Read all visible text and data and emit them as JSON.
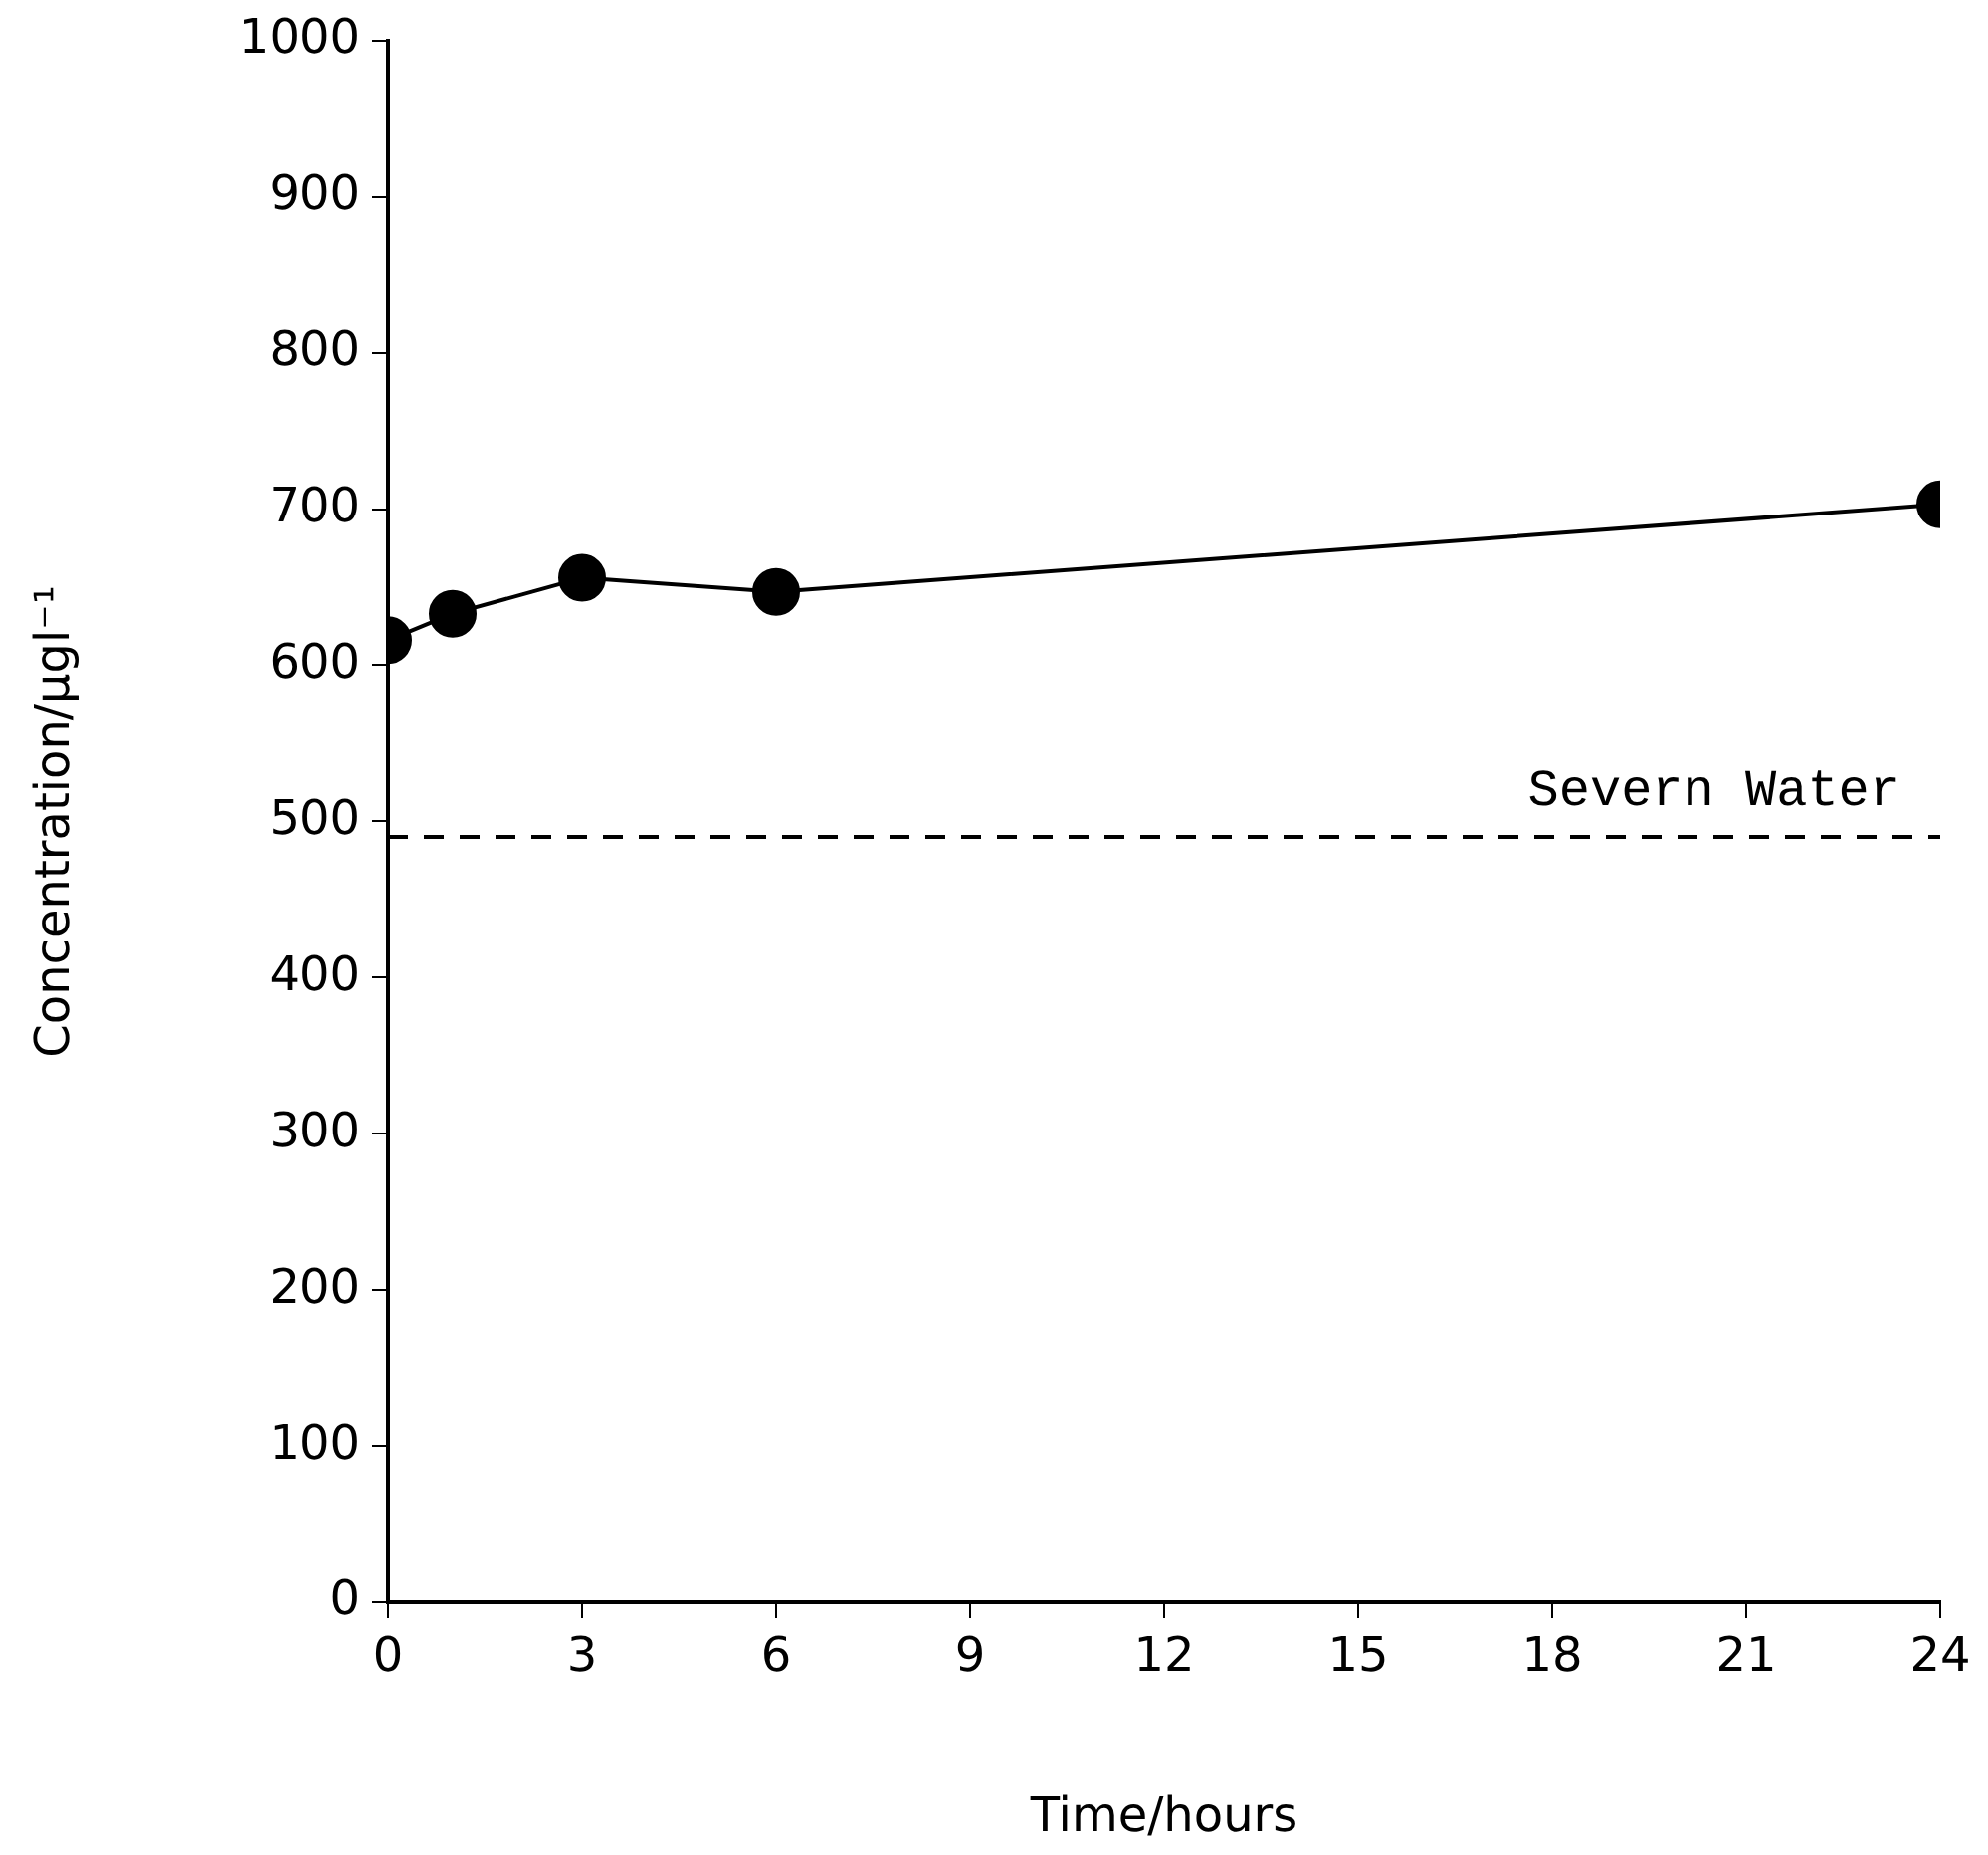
{
  "chart_data": {
    "type": "line",
    "xlabel": "Time/hours",
    "ylabel": "Concentration/μgl⁻¹",
    "x": [
      0,
      1,
      3,
      6,
      24
    ],
    "series": [
      {
        "color": "#000000",
        "values": [
          616,
          633,
          656,
          647,
          703
        ]
      }
    ],
    "xlim": [
      0,
      24
    ],
    "xticks": [
      0,
      3,
      6,
      9,
      12,
      15,
      18,
      21,
      24
    ],
    "ylim": [
      0,
      1000
    ],
    "yticks": [
      0,
      100,
      200,
      300,
      400,
      500,
      600,
      700,
      800,
      900,
      1000
    ],
    "ref_lines": [
      {
        "axis": "y",
        "value": 490,
        "label": "Severn Water",
        "color": "#000000",
        "line_style": "dashed"
      }
    ],
    "grid": false,
    "legend": false,
    "marker": "circle",
    "line_style": "solid"
  }
}
